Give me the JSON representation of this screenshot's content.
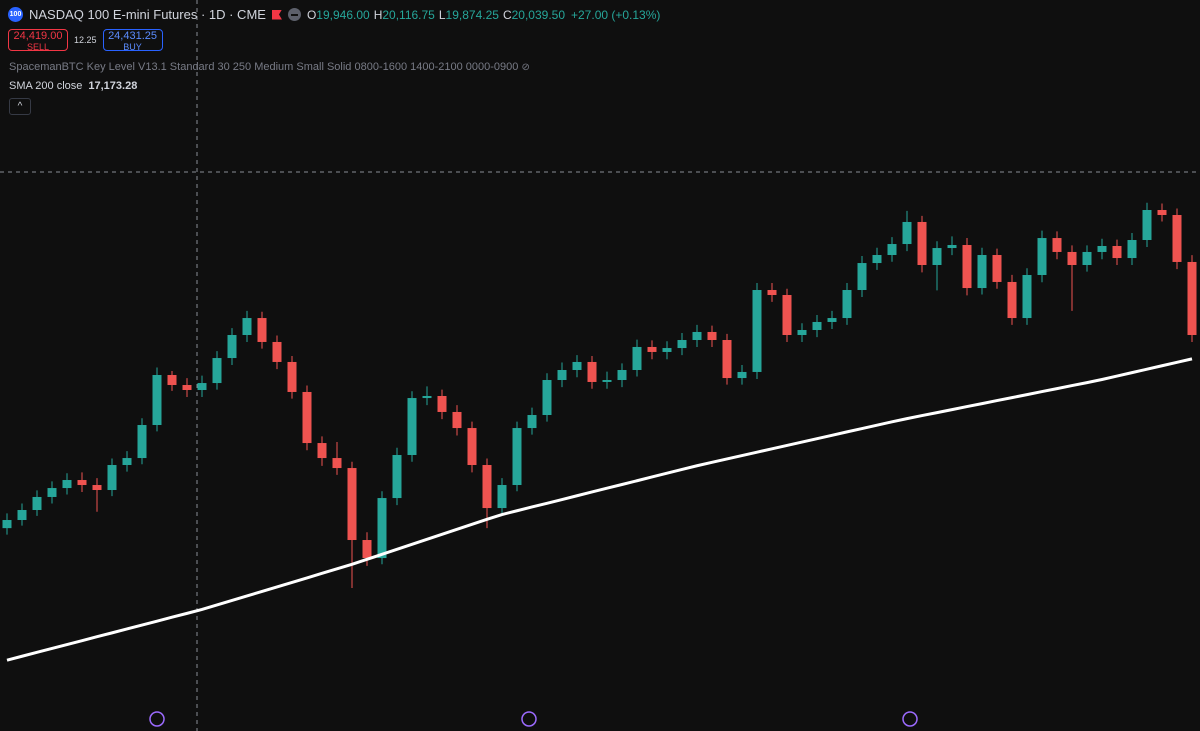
{
  "header": {
    "icon": "100",
    "symbol": "NASDAQ 100 E-mini Futures · 1D · CME",
    "ohlc": [
      {
        "label": "O",
        "value": "19,946.00"
      },
      {
        "label": "H",
        "value": "20,116.75"
      },
      {
        "label": "L",
        "value": "19,874.25"
      },
      {
        "label": "C",
        "value": "20,039.50"
      }
    ],
    "change": "+27.00 (+0.13%)"
  },
  "trade": {
    "sell_price": "24,419.00",
    "sell": "SELL",
    "spread": "12.25",
    "buy_price": "24,431.25",
    "buy": "BUY"
  },
  "indicator": "SpacemanBTC Key Level V13.1 Standard 30 250 Medium Small Solid 0800-1600 1400-2100 0000-0900",
  "sma_legend": {
    "name": "SMA 200 close",
    "value": "17,173.28"
  },
  "chart_data": {
    "type": "candlestick",
    "ylim": [
      15725,
      24643
    ],
    "up_color": "#26a69a",
    "down_color": "#ef5350",
    "series": [
      {
        "name": "NASDAQ 100 E-mini Futures",
        "open": [
          18200,
          18299,
          18421,
          18580,
          18689,
          18787,
          18726,
          18665,
          18970,
          19055,
          19458,
          20068,
          19946,
          19885,
          19970,
          20275,
          20556,
          20763,
          20471,
          20227,
          19861,
          19238,
          19055,
          18933,
          18055,
          17835,
          18567,
          19092,
          19787,
          19812,
          19617,
          19421,
          18970,
          18445,
          18726,
          19421,
          19580,
          20007,
          20129,
          20227,
          19983,
          20007,
          20129,
          20410,
          20349,
          20397,
          20495,
          20593,
          20495,
          20031,
          20105,
          21105,
          21044,
          20556,
          20617,
          20715,
          20763,
          21105,
          21434,
          21532,
          21666,
          21935,
          21410,
          21617,
          21654,
          21129,
          21532,
          21203,
          20763,
          21288,
          21739,
          21569,
          21410,
          21569,
          21642,
          21495,
          21715,
          22081,
          22020,
          21447
        ],
        "high": [
          18380,
          18500,
          18660,
          18770,
          18870,
          18880,
          18810,
          19050,
          19140,
          19540,
          20160,
          20117,
          20030,
          20060,
          20360,
          20640,
          20850,
          20840,
          20550,
          20300,
          19940,
          19320,
          19250,
          19010,
          18150,
          18650,
          19180,
          19870,
          19930,
          19890,
          19700,
          19500,
          19050,
          18810,
          19500,
          19670,
          20090,
          20220,
          20310,
          20300,
          20110,
          20210,
          20500,
          20490,
          20480,
          20580,
          20680,
          20670,
          20570,
          20190,
          21190,
          21190,
          21120,
          20700,
          20800,
          20850,
          21190,
          21520,
          21620,
          21750,
          22070,
          22010,
          21700,
          21760,
          21740,
          21620,
          21610,
          21290,
          21370,
          21830,
          21820,
          21650,
          21650,
          21730,
          21720,
          21800,
          22170,
          22160,
          22100,
          21530
        ],
        "low": [
          18120,
          18230,
          18350,
          18500,
          18610,
          18640,
          18400,
          18590,
          18890,
          18980,
          19380,
          19874,
          19800,
          19800,
          19890,
          20190,
          20470,
          20390,
          20140,
          19780,
          19150,
          18960,
          18850,
          17470,
          17740,
          17760,
          18480,
          19010,
          19700,
          19530,
          19330,
          18880,
          18200,
          18360,
          18650,
          19340,
          19500,
          19920,
          20040,
          19900,
          19900,
          19920,
          20050,
          20260,
          20260,
          20310,
          20410,
          20410,
          19950,
          19950,
          20020,
          20960,
          20470,
          20470,
          20530,
          20630,
          20680,
          21020,
          21350,
          21450,
          21580,
          21320,
          21100,
          21530,
          21040,
          21050,
          21120,
          20680,
          20680,
          21200,
          21480,
          20850,
          21330,
          21480,
          21410,
          21410,
          21630,
          21940,
          21360,
          20470
        ],
        "close": [
          18299,
          18421,
          18580,
          18689,
          18787,
          18726,
          18665,
          18970,
          19055,
          19458,
          20068,
          19946,
          19885,
          19970,
          20275,
          20556,
          20763,
          20471,
          20227,
          19861,
          19238,
          19055,
          18933,
          18055,
          17835,
          18567,
          19092,
          19787,
          19812,
          19617,
          19421,
          18970,
          18445,
          18726,
          19421,
          19580,
          20007,
          20129,
          20227,
          19983,
          20007,
          20129,
          20410,
          20349,
          20397,
          20495,
          20593,
          20495,
          20031,
          20105,
          21105,
          21044,
          20556,
          20617,
          20715,
          20763,
          21105,
          21434,
          21532,
          21666,
          21935,
          21410,
          21617,
          21654,
          21129,
          21532,
          21203,
          20763,
          21288,
          21739,
          21569,
          21410,
          21569,
          21642,
          21495,
          21715,
          22081,
          22020,
          21447,
          20556
        ]
      },
      {
        "name": "SMA 200 close",
        "color": "#ffffff",
        "values": [
          16589,
          16637,
          16685,
          16732,
          16780,
          16827,
          16875,
          16922,
          16970,
          17018,
          17065,
          17113,
          17160,
          17208,
          17263,
          17318,
          17373,
          17428,
          17483,
          17538,
          17593,
          17648,
          17703,
          17758,
          17819,
          17880,
          17941,
          18002,
          18063,
          18124,
          18185,
          18246,
          18307,
          18366,
          18412,
          18458,
          18503,
          18549,
          18595,
          18641,
          18687,
          18732,
          18778,
          18824,
          18870,
          18916,
          18961,
          19003,
          19044,
          19085,
          19126,
          19168,
          19209,
          19250,
          19291,
          19332,
          19374,
          19415,
          19456,
          19497,
          19536,
          19573,
          19609,
          19646,
          19683,
          19719,
          19756,
          19792,
          19829,
          19866,
          19902,
          19939,
          19975,
          20013,
          20055,
          20097,
          20139,
          20181,
          20223,
          20265
        ]
      }
    ]
  }
}
